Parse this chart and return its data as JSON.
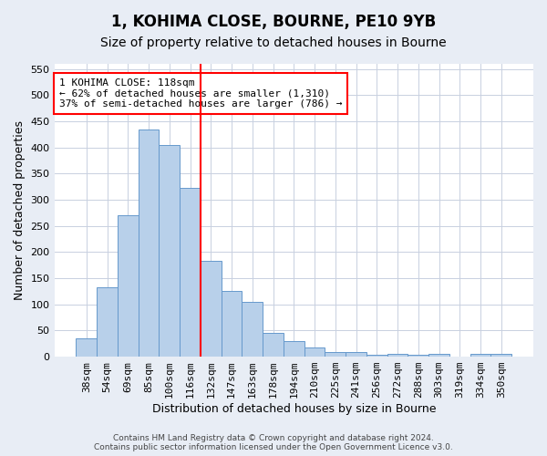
{
  "title": "1, KOHIMA CLOSE, BOURNE, PE10 9YB",
  "subtitle": "Size of property relative to detached houses in Bourne",
  "xlabel": "Distribution of detached houses by size in Bourne",
  "ylabel": "Number of detached properties",
  "bar_categories": [
    "38sqm",
    "54sqm",
    "69sqm",
    "85sqm",
    "100sqm",
    "116sqm",
    "132sqm",
    "147sqm",
    "163sqm",
    "178sqm",
    "194sqm",
    "210sqm",
    "225sqm",
    "241sqm",
    "256sqm",
    "272sqm",
    "288sqm",
    "303sqm",
    "319sqm",
    "334sqm",
    "350sqm"
  ],
  "bar_values": [
    35,
    132,
    270,
    435,
    405,
    323,
    184,
    125,
    105,
    46,
    29,
    18,
    8,
    9,
    4,
    5,
    4,
    5,
    0,
    6,
    6
  ],
  "bar_color": "#b8d0ea",
  "bar_edge_color": "#6699cc",
  "vline_x": 5.5,
  "vline_color": "red",
  "annotation_text": "1 KOHIMA CLOSE: 118sqm\n← 62% of detached houses are smaller (1,310)\n37% of semi-detached houses are larger (786) →",
  "annotation_box_color": "white",
  "annotation_box_edge_color": "red",
  "ylim": [
    0,
    560
  ],
  "yticks": [
    0,
    50,
    100,
    150,
    200,
    250,
    300,
    350,
    400,
    450,
    500,
    550
  ],
  "bg_color": "#e8edf5",
  "plot_bg_color": "white",
  "grid_color": "#c8d0e0",
  "footnote": "Contains HM Land Registry data © Crown copyright and database right 2024.\nContains public sector information licensed under the Open Government Licence v3.0.",
  "title_fontsize": 12,
  "subtitle_fontsize": 10,
  "xlabel_fontsize": 9,
  "ylabel_fontsize": 9
}
